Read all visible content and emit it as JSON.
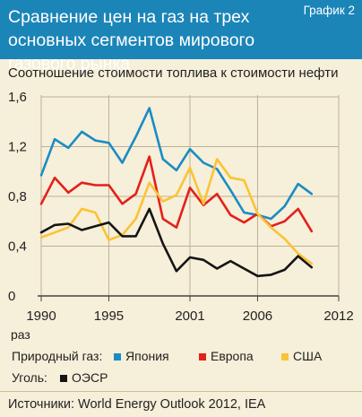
{
  "header": {
    "title_line1": "Сравнение цен на газ на трех",
    "title_line2": "основных сегментов мирового газового рынка",
    "tag": "График 2"
  },
  "colors": {
    "header_bg": "#1c85b8",
    "background": "#f6efd9",
    "japan": "#1a8cc4",
    "europe": "#e3201b",
    "usa": "#fbc335",
    "oecd": "#151515"
  },
  "legend": {
    "natural_gas_label": "Природный газ:",
    "coal_label": "Уголь:",
    "japan": "Япония",
    "europe": "Европа",
    "usa": "США",
    "oecd": "ОЭСР"
  },
  "source": "Источники: World Energy Outlook 2012, IEA",
  "chart_data": {
    "type": "line",
    "title": "",
    "ylabel": "Соотношение стоимости топлива к стоимости нефти",
    "xlabel": "",
    "x_unit_label": "раз",
    "xlim": [
      1990,
      2012
    ],
    "ylim": [
      0,
      1.6
    ],
    "x_ticks": [
      "1990",
      "1995",
      "2001",
      "2006",
      "2012"
    ],
    "y_ticks": [
      "0",
      "0,4",
      "0,8",
      "1,2",
      "1,6"
    ],
    "grid": true,
    "legend_position": "bottom",
    "series": [
      {
        "name": "Япония",
        "color": "#1a8cc4",
        "points": [
          [
            1990,
            0.97
          ],
          [
            1991,
            1.26
          ],
          [
            1992,
            1.19
          ],
          [
            1993,
            1.32
          ],
          [
            1994,
            1.25
          ],
          [
            1995,
            1.23
          ],
          [
            1996,
            1.07
          ],
          [
            1997,
            1.28
          ],
          [
            1998,
            1.51
          ],
          [
            1999,
            1.1
          ],
          [
            2000,
            1.01
          ],
          [
            2001,
            1.18
          ],
          [
            2002,
            1.07
          ],
          [
            2003,
            1.02
          ],
          [
            2004,
            0.85
          ],
          [
            2005,
            0.67
          ],
          [
            2006,
            0.65
          ],
          [
            2007,
            0.62
          ],
          [
            2008,
            0.72
          ],
          [
            2009,
            0.9
          ],
          [
            2010,
            0.82
          ]
        ]
      },
      {
        "name": "Европа",
        "color": "#e3201b",
        "points": [
          [
            1990,
            0.74
          ],
          [
            1991,
            0.95
          ],
          [
            1992,
            0.83
          ],
          [
            1993,
            0.91
          ],
          [
            1994,
            0.89
          ],
          [
            1995,
            0.89
          ],
          [
            1996,
            0.74
          ],
          [
            1997,
            0.82
          ],
          [
            1998,
            1.12
          ],
          [
            1999,
            0.62
          ],
          [
            2000,
            0.55
          ],
          [
            2001,
            0.87
          ],
          [
            2002,
            0.73
          ],
          [
            2003,
            0.82
          ],
          [
            2004,
            0.65
          ],
          [
            2005,
            0.59
          ],
          [
            2006,
            0.66
          ],
          [
            2007,
            0.56
          ],
          [
            2008,
            0.6
          ],
          [
            2009,
            0.7
          ],
          [
            2010,
            0.52
          ]
        ]
      },
      {
        "name": "США",
        "color": "#fbc335",
        "points": [
          [
            1990,
            0.47
          ],
          [
            1991,
            0.51
          ],
          [
            1992,
            0.55
          ],
          [
            1993,
            0.7
          ],
          [
            1994,
            0.67
          ],
          [
            1995,
            0.45
          ],
          [
            1996,
            0.49
          ],
          [
            1997,
            0.62
          ],
          [
            1998,
            0.91
          ],
          [
            1999,
            0.76
          ],
          [
            2000,
            0.81
          ],
          [
            2001,
            1.03
          ],
          [
            2002,
            0.74
          ],
          [
            2003,
            1.1
          ],
          [
            2004,
            0.95
          ],
          [
            2005,
            0.93
          ],
          [
            2006,
            0.66
          ],
          [
            2007,
            0.55
          ],
          [
            2008,
            0.46
          ],
          [
            2009,
            0.34
          ],
          [
            2010,
            0.26
          ]
        ]
      },
      {
        "name": "ОЭСР",
        "color": "#151515",
        "points": [
          [
            1990,
            0.51
          ],
          [
            1991,
            0.57
          ],
          [
            1992,
            0.58
          ],
          [
            1993,
            0.53
          ],
          [
            1994,
            0.56
          ],
          [
            1995,
            0.59
          ],
          [
            1996,
            0.48
          ],
          [
            1997,
            0.48
          ],
          [
            1998,
            0.7
          ],
          [
            1999,
            0.42
          ],
          [
            2000,
            0.2
          ],
          [
            2001,
            0.31
          ],
          [
            2002,
            0.29
          ],
          [
            2003,
            0.22
          ],
          [
            2004,
            0.28
          ],
          [
            2005,
            0.22
          ],
          [
            2006,
            0.16
          ],
          [
            2007,
            0.17
          ],
          [
            2008,
            0.21
          ],
          [
            2009,
            0.32
          ],
          [
            2010,
            0.23
          ]
        ]
      }
    ]
  }
}
